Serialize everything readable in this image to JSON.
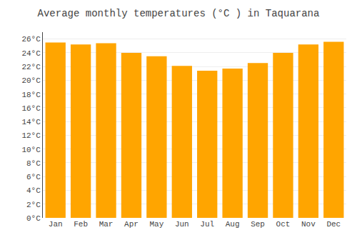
{
  "chart_data": {
    "type": "bar",
    "title": "Average monthly temperatures (°C ) in Taquarana",
    "categories": [
      "Jan",
      "Feb",
      "Mar",
      "Apr",
      "May",
      "Jun",
      "Jul",
      "Aug",
      "Sep",
      "Oct",
      "Nov",
      "Dec"
    ],
    "values": [
      25.5,
      25.2,
      25.4,
      24.0,
      23.5,
      22.1,
      21.4,
      21.7,
      22.5,
      24.0,
      25.2,
      25.6
    ],
    "color": "#FFA500",
    "ylim": [
      0,
      27
    ],
    "yticks": [
      {
        "value": 0,
        "label": "0°C"
      },
      {
        "value": 2,
        "label": "2°C"
      },
      {
        "value": 4,
        "label": "4°C"
      },
      {
        "value": 6,
        "label": "6°C"
      },
      {
        "value": 8,
        "label": "8°C"
      },
      {
        "value": 10,
        "label": "10°C"
      },
      {
        "value": 12,
        "label": "12°C"
      },
      {
        "value": 14,
        "label": "14°C"
      },
      {
        "value": 16,
        "label": "16°C"
      },
      {
        "value": 18,
        "label": "18°C"
      },
      {
        "value": 20,
        "label": "20°C"
      },
      {
        "value": 22,
        "label": "22°C"
      },
      {
        "value": 24,
        "label": "24°C"
      },
      {
        "value": 26,
        "label": "26°C"
      }
    ],
    "grid": true
  }
}
